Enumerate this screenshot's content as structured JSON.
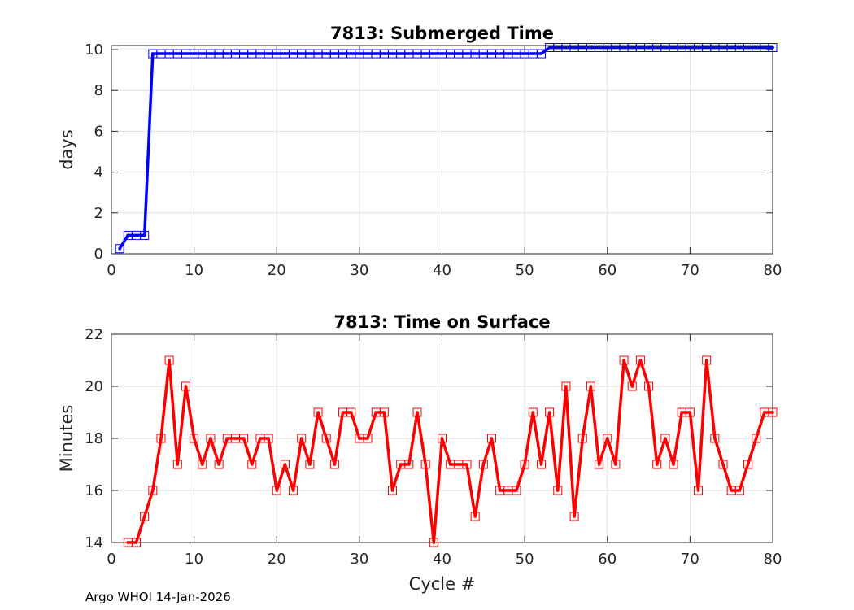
{
  "chart_data": [
    {
      "type": "line",
      "title": "7813: Submerged Time",
      "xlabel": "",
      "ylabel": "days",
      "xlim": [
        0,
        80
      ],
      "ylim": [
        0,
        10.2
      ],
      "xticks": [
        0,
        10,
        20,
        30,
        40,
        50,
        60,
        70,
        80
      ],
      "yticks": [
        0,
        2,
        4,
        6,
        8,
        10
      ],
      "grid": true,
      "color": "#0000ff",
      "marker": "square",
      "x": [
        1,
        2,
        3,
        4,
        5,
        6,
        7,
        8,
        9,
        10,
        11,
        12,
        13,
        14,
        15,
        16,
        17,
        18,
        19,
        20,
        21,
        22,
        23,
        24,
        25,
        26,
        27,
        28,
        29,
        30,
        31,
        32,
        33,
        34,
        35,
        36,
        37,
        38,
        39,
        40,
        41,
        42,
        43,
        44,
        45,
        46,
        47,
        48,
        49,
        50,
        51,
        52,
        53,
        54,
        55,
        56,
        57,
        58,
        59,
        60,
        61,
        62,
        63,
        64,
        65,
        66,
        67,
        68,
        69,
        70,
        71,
        72,
        73,
        74,
        75,
        76,
        77,
        78,
        79,
        80
      ],
      "y": [
        0.25,
        0.9,
        0.9,
        0.9,
        9.8,
        9.8,
        9.8,
        9.8,
        9.8,
        9.8,
        9.8,
        9.8,
        9.8,
        9.8,
        9.8,
        9.8,
        9.8,
        9.8,
        9.8,
        9.8,
        9.8,
        9.8,
        9.8,
        9.8,
        9.8,
        9.8,
        9.8,
        9.8,
        9.8,
        9.8,
        9.8,
        9.8,
        9.8,
        9.8,
        9.8,
        9.8,
        9.8,
        9.8,
        9.8,
        9.8,
        9.8,
        9.8,
        9.8,
        9.8,
        9.8,
        9.8,
        9.8,
        9.8,
        9.8,
        9.8,
        9.8,
        9.8,
        10.1,
        10.1,
        10.1,
        10.1,
        10.1,
        10.1,
        10.1,
        10.1,
        10.1,
        10.1,
        10.1,
        10.1,
        10.1,
        10.1,
        10.1,
        10.1,
        10.1,
        10.1,
        10.1,
        10.1,
        10.1,
        10.1,
        10.1,
        10.1,
        10.1,
        10.1,
        10.1,
        10.1
      ]
    },
    {
      "type": "line",
      "title": "7813: Time on Surface",
      "xlabel": "Cycle #",
      "ylabel": "Minutes",
      "xlim": [
        0,
        80
      ],
      "ylim": [
        14,
        22
      ],
      "xticks": [
        0,
        10,
        20,
        30,
        40,
        50,
        60,
        70,
        80
      ],
      "yticks": [
        14,
        16,
        18,
        20,
        22
      ],
      "grid": true,
      "color": "#ff0000",
      "marker": "square",
      "x": [
        2,
        3,
        4,
        5,
        6,
        7,
        8,
        9,
        10,
        11,
        12,
        13,
        14,
        15,
        16,
        17,
        18,
        19,
        20,
        21,
        22,
        23,
        24,
        25,
        26,
        27,
        28,
        29,
        30,
        31,
        32,
        33,
        34,
        35,
        36,
        37,
        38,
        39,
        40,
        41,
        42,
        43,
        44,
        45,
        46,
        47,
        48,
        49,
        50,
        51,
        52,
        53,
        54,
        55,
        56,
        57,
        58,
        59,
        60,
        61,
        62,
        63,
        64,
        65,
        66,
        67,
        68,
        69,
        70,
        71,
        72,
        73,
        74,
        75,
        76,
        77,
        78,
        79,
        80
      ],
      "y": [
        14,
        14,
        15,
        16,
        18,
        21,
        17,
        20,
        18,
        17,
        18,
        17,
        18,
        18,
        18,
        17,
        18,
        18,
        16,
        17,
        16,
        18,
        17,
        19,
        18,
        17,
        19,
        19,
        18,
        18,
        19,
        19,
        16,
        17,
        17,
        19,
        17,
        14,
        18,
        17,
        17,
        17,
        15,
        17,
        18,
        16,
        16,
        16,
        17,
        19,
        17,
        19,
        16,
        20,
        15,
        18,
        20,
        17,
        18,
        17,
        21,
        20,
        21,
        20,
        17,
        18,
        17,
        19,
        19,
        16,
        21,
        18,
        17,
        16,
        16,
        17,
        18,
        19,
        19
      ]
    }
  ],
  "footer": "Argo WHOI 14-Jan-2026"
}
